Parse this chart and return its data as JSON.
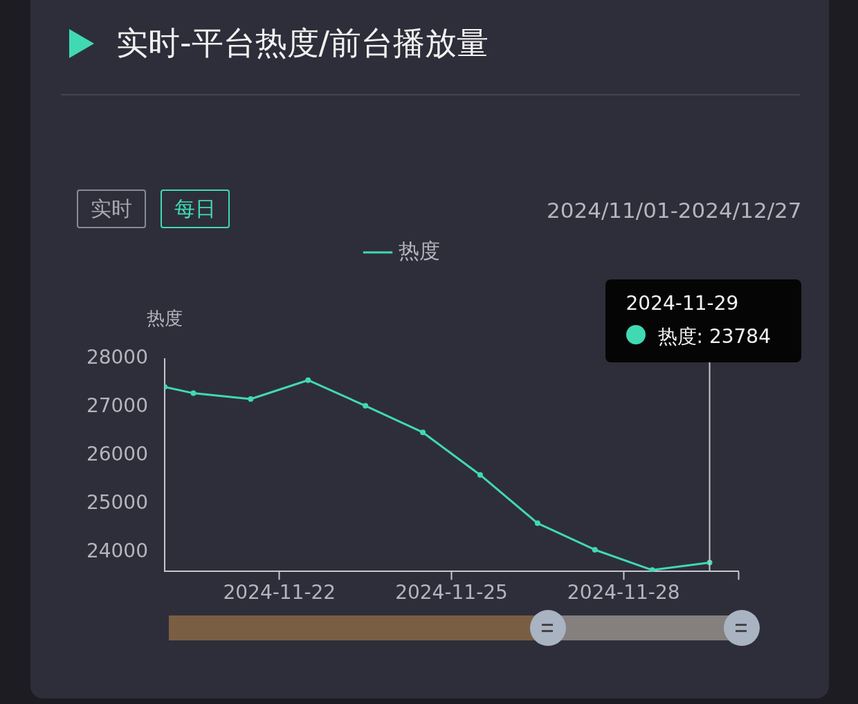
{
  "chart_data": {
    "type": "line",
    "title": "实时-平台热度/前台播放量",
    "ylabel": "热度",
    "x": [
      "2024-11-20T00:00",
      "2024-11-20T12:00",
      "2024-11-21T12:00",
      "2024-11-22T12:00",
      "2024-11-23T12:00",
      "2024-11-24T12:00",
      "2024-11-25T12:00",
      "2024-11-26T12:00",
      "2024-11-27T12:00",
      "2024-11-28T12:00",
      "2024-11-29T12:00"
    ],
    "series": [
      {
        "name": "热度",
        "color": "#40d9b4",
        "values": [
          27420,
          27290,
          27170,
          27560,
          27030,
          26480,
          25600,
          24600,
          24050,
          23630,
          23784
        ]
      }
    ],
    "xlim": [
      "2024-11-20T00:00",
      "2024-11-30T00:00"
    ],
    "xticks": [
      "2024-11-22",
      "2024-11-25",
      "2024-11-28",
      {
        "value": "2024-11-30",
        "label": null
      }
    ],
    "ylim": [
      23600,
      28000
    ],
    "yticks": [
      24000,
      25000,
      26000,
      27000,
      28000
    ],
    "ref_lines": [
      {
        "axis": "x",
        "value": "2024-11-29T12:00",
        "color": "#c8c8cc"
      }
    ],
    "annotations": [
      "实时",
      "每日",
      "2024/11/01-2024/12/27",
      "2024-11-29",
      "热度: 23784"
    ],
    "grid": false,
    "legend": "top",
    "marker": "circle",
    "line_style": "solid"
  }
}
